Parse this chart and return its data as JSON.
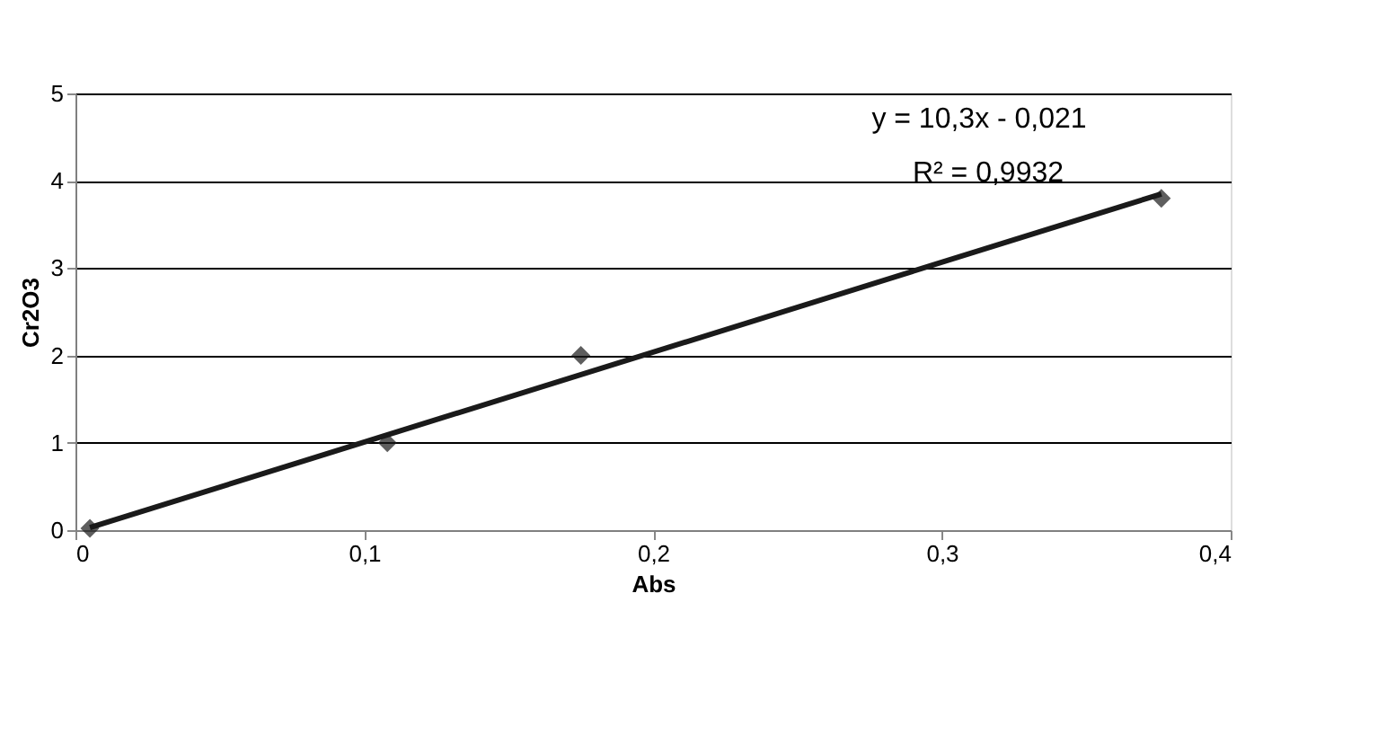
{
  "chart_data": {
    "type": "scatter",
    "xlabel": "Abs",
    "ylabel": "Cr2O3",
    "xlim": [
      0,
      0.4
    ],
    "ylim": [
      0,
      5
    ],
    "xticks": [
      0,
      {
        "value": 0.1,
        "label": "0,1"
      },
      {
        "value": 0.2,
        "label": "0,2"
      },
      {
        "value": 0.3,
        "label": "0,3"
      },
      {
        "value": 0.4,
        "label": "0,4"
      }
    ],
    "yticks": [
      0,
      1,
      2,
      3,
      4,
      5
    ],
    "grid": "y",
    "marker": "diamond",
    "series": [
      {
        "color": "#1a1a1a",
        "x": [
          0.005,
          0.108,
          0.175,
          0.376
        ],
        "values": [
          0.02,
          1.0,
          2.0,
          3.8
        ]
      },
      {
        "type": "line",
        "color": "#1a1a1a",
        "x": [
          0.005,
          0.376
        ],
        "values": [
          0.03,
          3.85
        ],
        "line_style": "solid",
        "marker": "none"
      }
    ],
    "annotations": [
      "y = 10,3x - 0,021",
      "R² = 0,9932"
    ]
  }
}
